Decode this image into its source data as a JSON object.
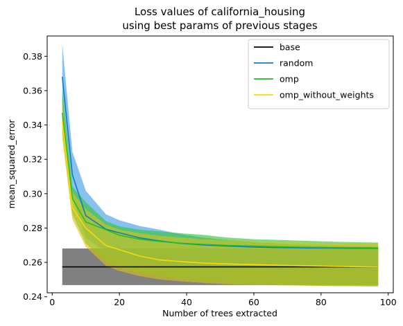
{
  "chart_data": {
    "type": "line",
    "title_lines": [
      "Loss values of california_housing",
      "using best params of previous stages"
    ],
    "xlabel": "Number of trees extracted",
    "ylabel": "mean_squared_error",
    "xlim": [
      -1.5,
      101.5
    ],
    "ylim": [
      0.2423,
      0.3918
    ],
    "xticks": [
      0,
      20,
      40,
      60,
      80,
      100
    ],
    "yticks": [
      0.24,
      0.26,
      0.28,
      0.3,
      0.32,
      0.34,
      0.36,
      0.38
    ],
    "ytick_labels": [
      "0.24",
      "0.26",
      "0.28",
      "0.30",
      "0.32",
      "0.34",
      "0.36",
      "0.38"
    ],
    "grid": false,
    "legend_position": "top-right",
    "x": [
      3,
      6,
      10,
      16,
      20,
      26,
      32,
      38,
      45,
      52,
      60,
      68,
      76,
      84,
      91,
      97
    ],
    "series": [
      {
        "name": "base",
        "color": "#000000",
        "values": [
          0.2574,
          0.2574,
          0.2574,
          0.2574,
          0.2574,
          0.2574,
          0.2574,
          0.2574,
          0.2574,
          0.2574,
          0.2574,
          0.2574,
          0.2574,
          0.2574,
          0.2574,
          0.2574
        ],
        "band_lower": [
          0.2468,
          0.2468,
          0.2468,
          0.2468,
          0.2468,
          0.2468,
          0.2468,
          0.2468,
          0.2468,
          0.2468,
          0.2468,
          0.2468,
          0.2468,
          0.2468,
          0.2468,
          0.2468
        ],
        "band_upper": [
          0.2681,
          0.2681,
          0.2681,
          0.2681,
          0.2681,
          0.2681,
          0.2681,
          0.2681,
          0.2681,
          0.2681,
          0.2681,
          0.2681,
          0.2681,
          0.2681,
          0.2681,
          0.2681
        ],
        "band_color": "#808080"
      },
      {
        "name": "random",
        "color": "#0f7bbf",
        "values": [
          0.3681,
          0.3111,
          0.2872,
          0.2793,
          0.2772,
          0.2743,
          0.2725,
          0.2711,
          0.2701,
          0.2695,
          0.2689,
          0.2686,
          0.2684,
          0.2683,
          0.2682,
          0.2682
        ],
        "band_lower": [
          0.3489,
          0.2979,
          0.2742,
          0.2662,
          0.2638,
          0.2613,
          0.2594,
          0.2581,
          0.2571,
          0.2565,
          0.2561,
          0.2559,
          0.2558,
          0.2557,
          0.2557,
          0.2557
        ],
        "band_upper": [
          0.3872,
          0.3245,
          0.3017,
          0.288,
          0.2845,
          0.2812,
          0.279,
          0.2765,
          0.2744,
          0.273,
          0.2718,
          0.2708,
          0.2701,
          0.2697,
          0.2694,
          0.2691
        ],
        "band_color": "#3c9be6"
      },
      {
        "name": "omp",
        "color": "#1fbf1f",
        "values": [
          0.347,
          0.2972,
          0.2835,
          0.279,
          0.2758,
          0.2735,
          0.2722,
          0.2712,
          0.2705,
          0.2699,
          0.2695,
          0.2691,
          0.2688,
          0.2686,
          0.2685,
          0.2684
        ],
        "band_lower": [
          0.336,
          0.288,
          0.271,
          0.2605,
          0.257,
          0.254,
          0.252,
          0.2505,
          0.249,
          0.248,
          0.2475,
          0.247,
          0.2465,
          0.2462,
          0.2461,
          0.246
        ],
        "band_upper": [
          0.36,
          0.304,
          0.295,
          0.284,
          0.281,
          0.279,
          0.278,
          0.277,
          0.276,
          0.2745,
          0.2735,
          0.273,
          0.2725,
          0.272,
          0.2717,
          0.2715
        ],
        "band_color": "#33c433"
      },
      {
        "name": "omp_without_weights",
        "color": "#ffd700",
        "values": [
          0.3421,
          0.292,
          0.28,
          0.2698,
          0.2674,
          0.2637,
          0.2614,
          0.2605,
          0.2596,
          0.2591,
          0.2587,
          0.2583,
          0.258,
          0.2577,
          0.2575,
          0.2574
        ],
        "band_lower": [
          0.332,
          0.285,
          0.269,
          0.258,
          0.255,
          0.252,
          0.25,
          0.249,
          0.248,
          0.2472,
          0.2468,
          0.2466,
          0.2464,
          0.2463,
          0.2462,
          0.2462
        ],
        "band_upper": [
          0.355,
          0.301,
          0.291,
          0.282,
          0.279,
          0.277,
          0.2755,
          0.2745,
          0.2735,
          0.2728,
          0.2722,
          0.2718,
          0.2715,
          0.2712,
          0.271,
          0.2708
        ],
        "band_color": "#d9c21a"
      }
    ]
  }
}
